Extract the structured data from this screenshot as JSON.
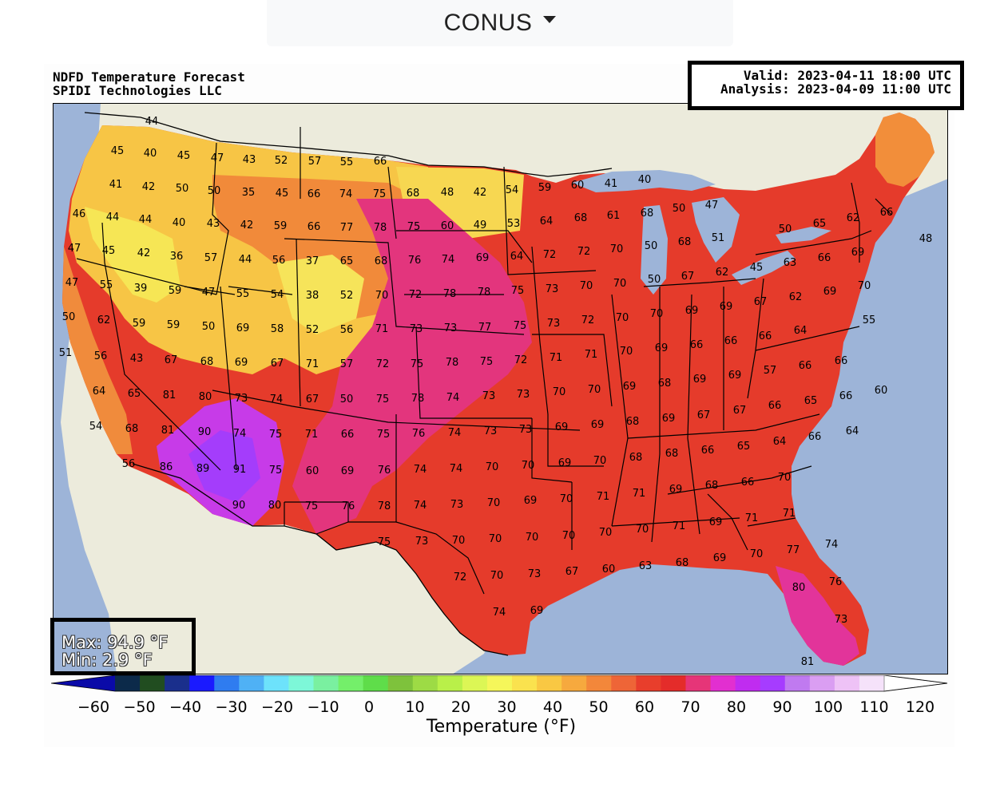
{
  "selector": {
    "label": "CONUS",
    "icon": "chevron-down-icon"
  },
  "header": {
    "title_line1": "NDFD Temperature Forecast",
    "title_line2": "SPIDI Technologies LLC",
    "valid": "Valid: 2023-04-11 18:00 UTC",
    "analysis": "Analysis: 2023-04-09 11:00 UTC"
  },
  "stats": {
    "max": "Max: 94.9 °F",
    "min": "Min: 2.9 °F"
  },
  "colorbar": {
    "label": "Temperature (°F)",
    "ticks": [
      "−60",
      "−50",
      "−40",
      "−30",
      "−20",
      "−10",
      "0",
      "10",
      "20",
      "30",
      "40",
      "50",
      "60",
      "70",
      "80",
      "90",
      "100",
      "110",
      "120"
    ],
    "colors": [
      "#0a0aa8",
      "#0c2a4a",
      "#214d20",
      "#1a2f8c",
      "#1a1aff",
      "#2f7cf0",
      "#4fb1f5",
      "#6de2fb",
      "#7df7d8",
      "#7af0a0",
      "#74ef6a",
      "#5fdd4a",
      "#7ec23c",
      "#9ddb45",
      "#b9f049",
      "#dcf655",
      "#f5f65a",
      "#fae24e",
      "#f9c843",
      "#f6a93e",
      "#f3873a",
      "#ee6537",
      "#e83e2c",
      "#e42c2a",
      "#e63578",
      "#e22fd0",
      "#c02cf0",
      "#a63cff",
      "#c07af0",
      "#da9ef2",
      "#eec2f6",
      "#f5e2fa",
      "#ffffff"
    ],
    "colors_note": ""
  },
  "map_labels": [
    [
      "44",
      190,
      151
    ],
    [
      "45",
      147,
      188
    ],
    [
      "40",
      188,
      191
    ],
    [
      "45",
      230,
      194
    ],
    [
      "47",
      272,
      197
    ],
    [
      "43",
      312,
      199
    ],
    [
      "52",
      352,
      200
    ],
    [
      "57",
      394,
      201
    ],
    [
      "55",
      434,
      202
    ],
    [
      "66",
      476,
      201
    ],
    [
      "41",
      145,
      230
    ],
    [
      "42",
      186,
      233
    ],
    [
      "50",
      228,
      235
    ],
    [
      "50",
      268,
      238
    ],
    [
      "35",
      311,
      240
    ],
    [
      "45",
      353,
      241
    ],
    [
      "66",
      393,
      242
    ],
    [
      "74",
      433,
      242
    ],
    [
      "75",
      475,
      242
    ],
    [
      "68",
      517,
      241
    ],
    [
      "48",
      560,
      240
    ],
    [
      "42",
      601,
      240
    ],
    [
      "54",
      641,
      237
    ],
    [
      "59",
      682,
      234
    ],
    [
      "60",
      723,
      231
    ],
    [
      "41",
      765,
      229
    ],
    [
      "40",
      807,
      224
    ],
    [
      "46",
      99,
      267
    ],
    [
      "44",
      141,
      271
    ],
    [
      "44",
      182,
      274
    ],
    [
      "40",
      224,
      278
    ],
    [
      "43",
      267,
      279
    ],
    [
      "42",
      309,
      281
    ],
    [
      "59",
      351,
      282
    ],
    [
      "66",
      393,
      283
    ],
    [
      "77",
      434,
      284
    ],
    [
      "78",
      476,
      284
    ],
    [
      "75",
      518,
      283
    ],
    [
      "60",
      560,
      282
    ],
    [
      "49",
      601,
      281
    ],
    [
      "53",
      643,
      279
    ],
    [
      "64",
      684,
      276
    ],
    [
      "68",
      727,
      272
    ],
    [
      "61",
      768,
      269
    ],
    [
      "68",
      810,
      266
    ],
    [
      "50",
      850,
      260
    ],
    [
      "47",
      891,
      256
    ],
    [
      "47",
      93,
      310
    ],
    [
      "45",
      136,
      313
    ],
    [
      "42",
      180,
      316
    ],
    [
      "36",
      221,
      320
    ],
    [
      "57",
      264,
      322
    ],
    [
      "44",
      307,
      324
    ],
    [
      "56",
      349,
      325
    ],
    [
      "37",
      391,
      326
    ],
    [
      "65",
      434,
      326
    ],
    [
      "68",
      477,
      326
    ],
    [
      "76",
      519,
      325
    ],
    [
      "74",
      561,
      324
    ],
    [
      "69",
      604,
      322
    ],
    [
      "64",
      647,
      320
    ],
    [
      "72",
      688,
      318
    ],
    [
      "72",
      731,
      314
    ],
    [
      "70",
      772,
      311
    ],
    [
      "50",
      815,
      307
    ],
    [
      "68",
      857,
      302
    ],
    [
      "51",
      899,
      297
    ],
    [
      "50",
      983,
      286
    ],
    [
      "65",
      1026,
      279
    ],
    [
      "62",
      1068,
      272
    ],
    [
      "66",
      1110,
      265
    ],
    [
      "48",
      1159,
      298
    ],
    [
      "47",
      90,
      353
    ],
    [
      "55",
      133,
      356
    ],
    [
      "39",
      176,
      360
    ],
    [
      "59",
      219,
      363
    ],
    [
      "47",
      261,
      365
    ],
    [
      "55",
      304,
      367
    ],
    [
      "54",
      347,
      368
    ],
    [
      "38",
      391,
      369
    ],
    [
      "52",
      434,
      369
    ],
    [
      "70",
      478,
      369
    ],
    [
      "72",
      520,
      368
    ],
    [
      "78",
      563,
      367
    ],
    [
      "78",
      606,
      365
    ],
    [
      "75",
      648,
      363
    ],
    [
      "73",
      691,
      361
    ],
    [
      "70",
      734,
      357
    ],
    [
      "70",
      776,
      354
    ],
    [
      "50",
      819,
      349
    ],
    [
      "67",
      861,
      345
    ],
    [
      "62",
      904,
      340
    ],
    [
      "45",
      947,
      334
    ],
    [
      "63",
      989,
      328
    ],
    [
      "66",
      1032,
      322
    ],
    [
      "69",
      1074,
      315
    ],
    [
      "50",
      86,
      396
    ],
    [
      "62",
      130,
      400
    ],
    [
      "59",
      174,
      404
    ],
    [
      "59",
      217,
      406
    ],
    [
      "50",
      261,
      408
    ],
    [
      "69",
      304,
      410
    ],
    [
      "58",
      347,
      411
    ],
    [
      "52",
      391,
      412
    ],
    [
      "56",
      434,
      412
    ],
    [
      "71",
      478,
      411
    ],
    [
      "73",
      521,
      411
    ],
    [
      "73",
      564,
      410
    ],
    [
      "77",
      607,
      409
    ],
    [
      "75",
      651,
      407
    ],
    [
      "73",
      693,
      404
    ],
    [
      "72",
      736,
      400
    ],
    [
      "70",
      779,
      397
    ],
    [
      "70",
      822,
      392
    ],
    [
      "69",
      866,
      388
    ],
    [
      "69",
      909,
      383
    ],
    [
      "67",
      952,
      377
    ],
    [
      "62",
      996,
      371
    ],
    [
      "69",
      1039,
      364
    ],
    [
      "70",
      1082,
      357
    ],
    [
      "55",
      1088,
      400
    ],
    [
      "51",
      82,
      441
    ],
    [
      "56",
      126,
      445
    ],
    [
      "43",
      171,
      448
    ],
    [
      "67",
      214,
      450
    ],
    [
      "68",
      259,
      452
    ],
    [
      "69",
      302,
      453
    ],
    [
      "67",
      347,
      454
    ],
    [
      "71",
      391,
      455
    ],
    [
      "57",
      434,
      455
    ],
    [
      "72",
      479,
      455
    ],
    [
      "75",
      522,
      455
    ],
    [
      "78",
      566,
      453
    ],
    [
      "75",
      609,
      452
    ],
    [
      "72",
      652,
      450
    ],
    [
      "71",
      696,
      447
    ],
    [
      "71",
      740,
      443
    ],
    [
      "70",
      784,
      439
    ],
    [
      "69",
      828,
      435
    ],
    [
      "66",
      872,
      431
    ],
    [
      "66",
      915,
      426
    ],
    [
      "66",
      958,
      420
    ],
    [
      "64",
      1002,
      413
    ],
    [
      "66",
      1053,
      451
    ],
    [
      "64",
      124,
      489
    ],
    [
      "65",
      168,
      492
    ],
    [
      "81",
      212,
      494
    ],
    [
      "80",
      257,
      496
    ],
    [
      "73",
      302,
      498
    ],
    [
      "74",
      346,
      499
    ],
    [
      "67",
      391,
      499
    ],
    [
      "50",
      434,
      499
    ],
    [
      "75",
      479,
      499
    ],
    [
      "78",
      523,
      498
    ],
    [
      "74",
      567,
      497
    ],
    [
      "73",
      612,
      495
    ],
    [
      "73",
      655,
      493
    ],
    [
      "70",
      700,
      490
    ],
    [
      "70",
      744,
      487
    ],
    [
      "69",
      788,
      483
    ],
    [
      "68",
      832,
      479
    ],
    [
      "69",
      876,
      474
    ],
    [
      "69",
      920,
      469
    ],
    [
      "57",
      964,
      463
    ],
    [
      "66",
      1008,
      457
    ],
    [
      "60",
      1103,
      488
    ],
    [
      "54",
      120,
      533
    ],
    [
      "68",
      165,
      536
    ],
    [
      "81",
      210,
      538
    ],
    [
      "90",
      256,
      540
    ],
    [
      "74",
      300,
      542
    ],
    [
      "75",
      345,
      543
    ],
    [
      "71",
      390,
      543
    ],
    [
      "66",
      435,
      543
    ],
    [
      "75",
      480,
      543
    ],
    [
      "76",
      524,
      542
    ],
    [
      "74",
      569,
      541
    ],
    [
      "73",
      614,
      539
    ],
    [
      "73",
      658,
      537
    ],
    [
      "69",
      703,
      534
    ],
    [
      "69",
      748,
      531
    ],
    [
      "68",
      792,
      527
    ],
    [
      "69",
      837,
      523
    ],
    [
      "67",
      881,
      519
    ],
    [
      "67",
      926,
      513
    ],
    [
      "66",
      970,
      507
    ],
    [
      "65",
      1015,
      501
    ],
    [
      "66",
      1059,
      495
    ],
    [
      "56",
      161,
      580
    ],
    [
      "86",
      208,
      584
    ],
    [
      "89",
      254,
      586
    ],
    [
      "91",
      300,
      587
    ],
    [
      "75",
      345,
      588
    ],
    [
      "60",
      391,
      589
    ],
    [
      "69",
      435,
      589
    ],
    [
      "76",
      481,
      588
    ],
    [
      "74",
      526,
      587
    ],
    [
      "74",
      571,
      586
    ],
    [
      "70",
      616,
      584
    ],
    [
      "70",
      661,
      582
    ],
    [
      "69",
      707,
      579
    ],
    [
      "70",
      751,
      576
    ],
    [
      "68",
      796,
      572
    ],
    [
      "68",
      841,
      567
    ],
    [
      "66",
      886,
      563
    ],
    [
      "65",
      931,
      558
    ],
    [
      "64",
      976,
      552
    ],
    [
      "66",
      1020,
      546
    ],
    [
      "64",
      1067,
      539
    ],
    [
      "90",
      299,
      632
    ],
    [
      "80",
      344,
      632
    ],
    [
      "75",
      390,
      633
    ],
    [
      "76",
      436,
      633
    ],
    [
      "78",
      481,
      633
    ],
    [
      "74",
      526,
      632
    ],
    [
      "73",
      572,
      631
    ],
    [
      "70",
      618,
      629
    ],
    [
      "69",
      664,
      626
    ],
    [
      "70",
      709,
      624
    ],
    [
      "71",
      755,
      621
    ],
    [
      "71",
      800,
      617
    ],
    [
      "69",
      846,
      612
    ],
    [
      "68",
      891,
      607
    ],
    [
      "66",
      936,
      603
    ],
    [
      "70",
      982,
      597
    ],
    [
      "71",
      988,
      642
    ],
    [
      "75",
      481,
      678
    ],
    [
      "73",
      528,
      677
    ],
    [
      "70",
      574,
      676
    ],
    [
      "70",
      620,
      674
    ],
    [
      "70",
      666,
      672
    ],
    [
      "70",
      712,
      670
    ],
    [
      "70",
      758,
      666
    ],
    [
      "70",
      804,
      662
    ],
    [
      "71",
      850,
      658
    ],
    [
      "69",
      896,
      653
    ],
    [
      "71",
      941,
      648
    ],
    [
      "77",
      993,
      688
    ],
    [
      "74",
      1041,
      681
    ],
    [
      "72",
      576,
      722
    ],
    [
      "70",
      622,
      720
    ],
    [
      "73",
      669,
      718
    ],
    [
      "67",
      716,
      715
    ],
    [
      "60",
      762,
      712
    ],
    [
      "63",
      808,
      708
    ],
    [
      "68",
      854,
      704
    ],
    [
      "69",
      901,
      698
    ],
    [
      "70",
      947,
      693
    ],
    [
      "80",
      1000,
      735
    ],
    [
      "76",
      1046,
      728
    ],
    [
      "74",
      625,
      766
    ],
    [
      "69",
      672,
      764
    ],
    [
      "73",
      1053,
      775
    ],
    [
      "81",
      1011,
      828
    ]
  ]
}
